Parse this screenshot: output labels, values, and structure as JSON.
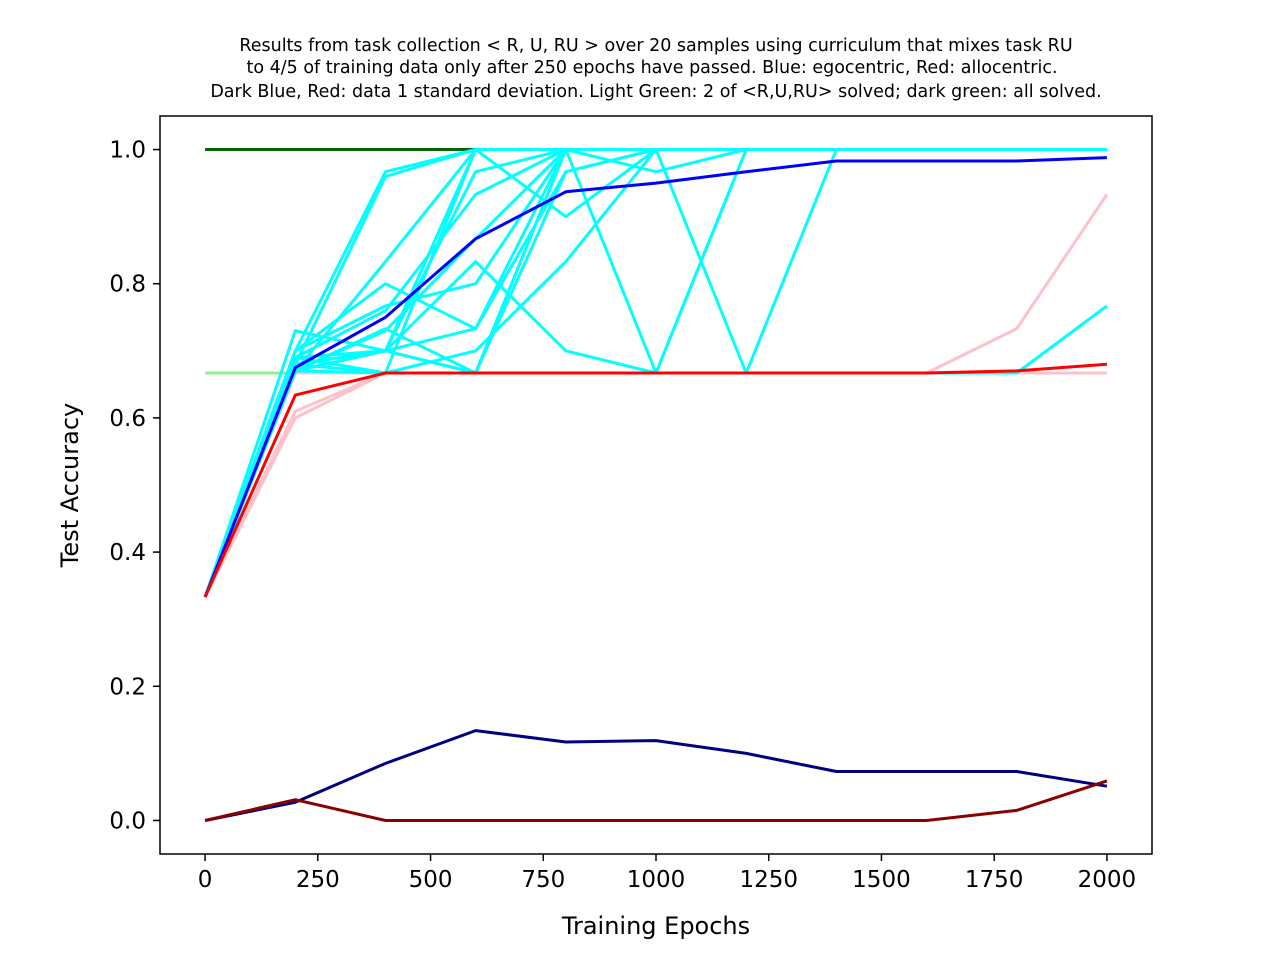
{
  "chart_data": {
    "type": "line",
    "title": [
      "Results from task collection < R, U, RU > over 20 samples using curriculum that mixes task RU",
      "to 4/5 of training data only after 250 epochs have passed. Blue: egocentric, Red: allocentric.",
      "Dark Blue, Red: data 1 standard deviation.  Light Green: 2 of <R,U,RU> solved; dark green: all solved."
    ],
    "xlabel": "Training Epochs",
    "ylabel": "Test Accuracy",
    "xlim": [
      -100,
      2100
    ],
    "ylim": [
      -0.05,
      1.05
    ],
    "xticks": [
      0,
      250,
      500,
      750,
      1000,
      1250,
      1500,
      1750,
      2000
    ],
    "xtick_labels": [
      "0",
      "250",
      "500",
      "750",
      "1000",
      "1250",
      "1500",
      "1750",
      "2000"
    ],
    "yticks": [
      0.0,
      0.2,
      0.4,
      0.6,
      0.8,
      1.0
    ],
    "ytick_labels": [
      "0.0",
      "0.2",
      "0.4",
      "0.6",
      "0.8",
      "1.0"
    ],
    "grid": false,
    "legend": "none",
    "x": [
      0,
      200,
      400,
      600,
      800,
      1000,
      1200,
      1400,
      1600,
      1800,
      2000
    ],
    "reference_lines": [
      {
        "color": "#90ee90",
        "x": [
          0,
          600
        ],
        "y": [
          0.667,
          0.667
        ]
      },
      {
        "color": "#006400",
        "x": [
          0,
          600
        ],
        "y": [
          1.0,
          1.0
        ]
      }
    ],
    "allocentric_samples": {
      "color": "#ffc0cb",
      "series": [
        {
          "y": [
            0.333,
            0.6,
            0.667,
            0.667,
            0.667,
            0.667,
            0.667,
            0.667,
            0.667,
            0.733,
            0.933
          ]
        },
        {
          "y": [
            0.333,
            0.667,
            0.667,
            0.667,
            0.667,
            0.667,
            0.667,
            0.667,
            0.667,
            0.667,
            0.667
          ]
        },
        {
          "y": [
            0.333,
            0.61,
            0.667,
            0.667,
            0.667,
            0.667,
            0.667,
            0.667,
            0.667,
            0.667,
            0.667
          ]
        }
      ]
    },
    "egocentric_samples": {
      "color": "#00ffff",
      "series": [
        {
          "y": [
            0.333,
            0.73,
            0.7,
            1.0,
            1.0,
            1.0,
            1.0,
            1.0,
            1.0,
            1.0,
            1.0
          ]
        },
        {
          "y": [
            0.333,
            0.7,
            0.967,
            1.0,
            1.0,
            1.0,
            1.0,
            1.0,
            1.0,
            1.0,
            1.0
          ]
        },
        {
          "y": [
            0.333,
            0.68,
            0.96,
            1.0,
            1.0,
            1.0,
            1.0,
            1.0,
            1.0,
            1.0,
            1.0
          ]
        },
        {
          "y": [
            0.333,
            0.67,
            0.7,
            0.967,
            1.0,
            1.0,
            1.0,
            1.0,
            1.0,
            1.0,
            1.0
          ]
        },
        {
          "y": [
            0.333,
            0.69,
            0.76,
            0.933,
            1.0,
            1.0,
            1.0,
            1.0,
            1.0,
            1.0,
            1.0
          ]
        },
        {
          "y": [
            0.333,
            0.67,
            0.73,
            0.867,
            1.0,
            1.0,
            1.0,
            1.0,
            1.0,
            1.0,
            1.0
          ]
        },
        {
          "y": [
            0.333,
            0.7,
            0.767,
            0.8,
            1.0,
            1.0,
            1.0,
            1.0,
            1.0,
            1.0,
            1.0
          ]
        },
        {
          "y": [
            0.333,
            0.69,
            0.667,
            1.0,
            0.9,
            1.0,
            1.0,
            1.0,
            1.0,
            1.0,
            1.0
          ]
        },
        {
          "y": [
            0.333,
            0.68,
            0.7,
            0.833,
            0.7,
            0.667,
            1.0,
            1.0,
            1.0,
            1.0,
            1.0
          ]
        },
        {
          "y": [
            0.333,
            0.7,
            0.8,
            0.733,
            0.967,
            1.0,
            1.0,
            1.0,
            1.0,
            1.0,
            1.0
          ]
        },
        {
          "y": [
            0.333,
            0.68,
            0.667,
            0.7,
            0.833,
            1.0,
            1.0,
            1.0,
            1.0,
            1.0,
            1.0
          ]
        },
        {
          "y": [
            0.333,
            0.69,
            0.7,
            0.667,
            1.0,
            1.0,
            1.0,
            1.0,
            1.0,
            1.0,
            1.0
          ]
        },
        {
          "y": [
            0.333,
            0.68,
            0.7,
            0.667,
            1.0,
            0.967,
            1.0,
            1.0,
            1.0,
            1.0,
            1.0
          ]
        },
        {
          "y": [
            0.333,
            0.67,
            0.733,
            0.667,
            0.967,
            1.0,
            1.0,
            1.0,
            1.0,
            1.0,
            1.0
          ]
        },
        {
          "y": [
            0.333,
            0.67,
            0.7,
            0.733,
            1.0,
            0.667,
            1.0,
            1.0,
            1.0,
            1.0,
            1.0
          ]
        },
        {
          "y": [
            0.333,
            0.67,
            0.833,
            1.0,
            1.0,
            1.0,
            0.667,
            1.0,
            1.0,
            1.0,
            1.0
          ]
        },
        {
          "y": [
            0.333,
            0.67,
            0.667,
            0.667,
            0.667,
            0.667,
            0.667,
            0.667,
            0.667,
            0.667,
            0.767
          ]
        }
      ]
    },
    "series": [
      {
        "role": "egocentric-mean",
        "color": "#0000ff",
        "y": [
          0.333,
          0.675,
          0.75,
          0.867,
          0.937,
          0.95,
          0.967,
          0.983,
          0.983,
          0.983,
          0.988
        ]
      },
      {
        "role": "allocentric-mean",
        "color": "#ff0000",
        "y": [
          0.333,
          0.634,
          0.667,
          0.667,
          0.667,
          0.667,
          0.667,
          0.667,
          0.667,
          0.67,
          0.68
        ]
      },
      {
        "role": "egocentric-std",
        "color": "#000080",
        "y": [
          0.0,
          0.027,
          0.085,
          0.134,
          0.117,
          0.119,
          0.1,
          0.073,
          0.073,
          0.073,
          0.051
        ]
      },
      {
        "role": "allocentric-std",
        "color": "#8b0000",
        "y": [
          0.0,
          0.031,
          0.0,
          0.0,
          0.0,
          0.0,
          0.0,
          0.0,
          0.0,
          0.015,
          0.059
        ]
      }
    ]
  }
}
